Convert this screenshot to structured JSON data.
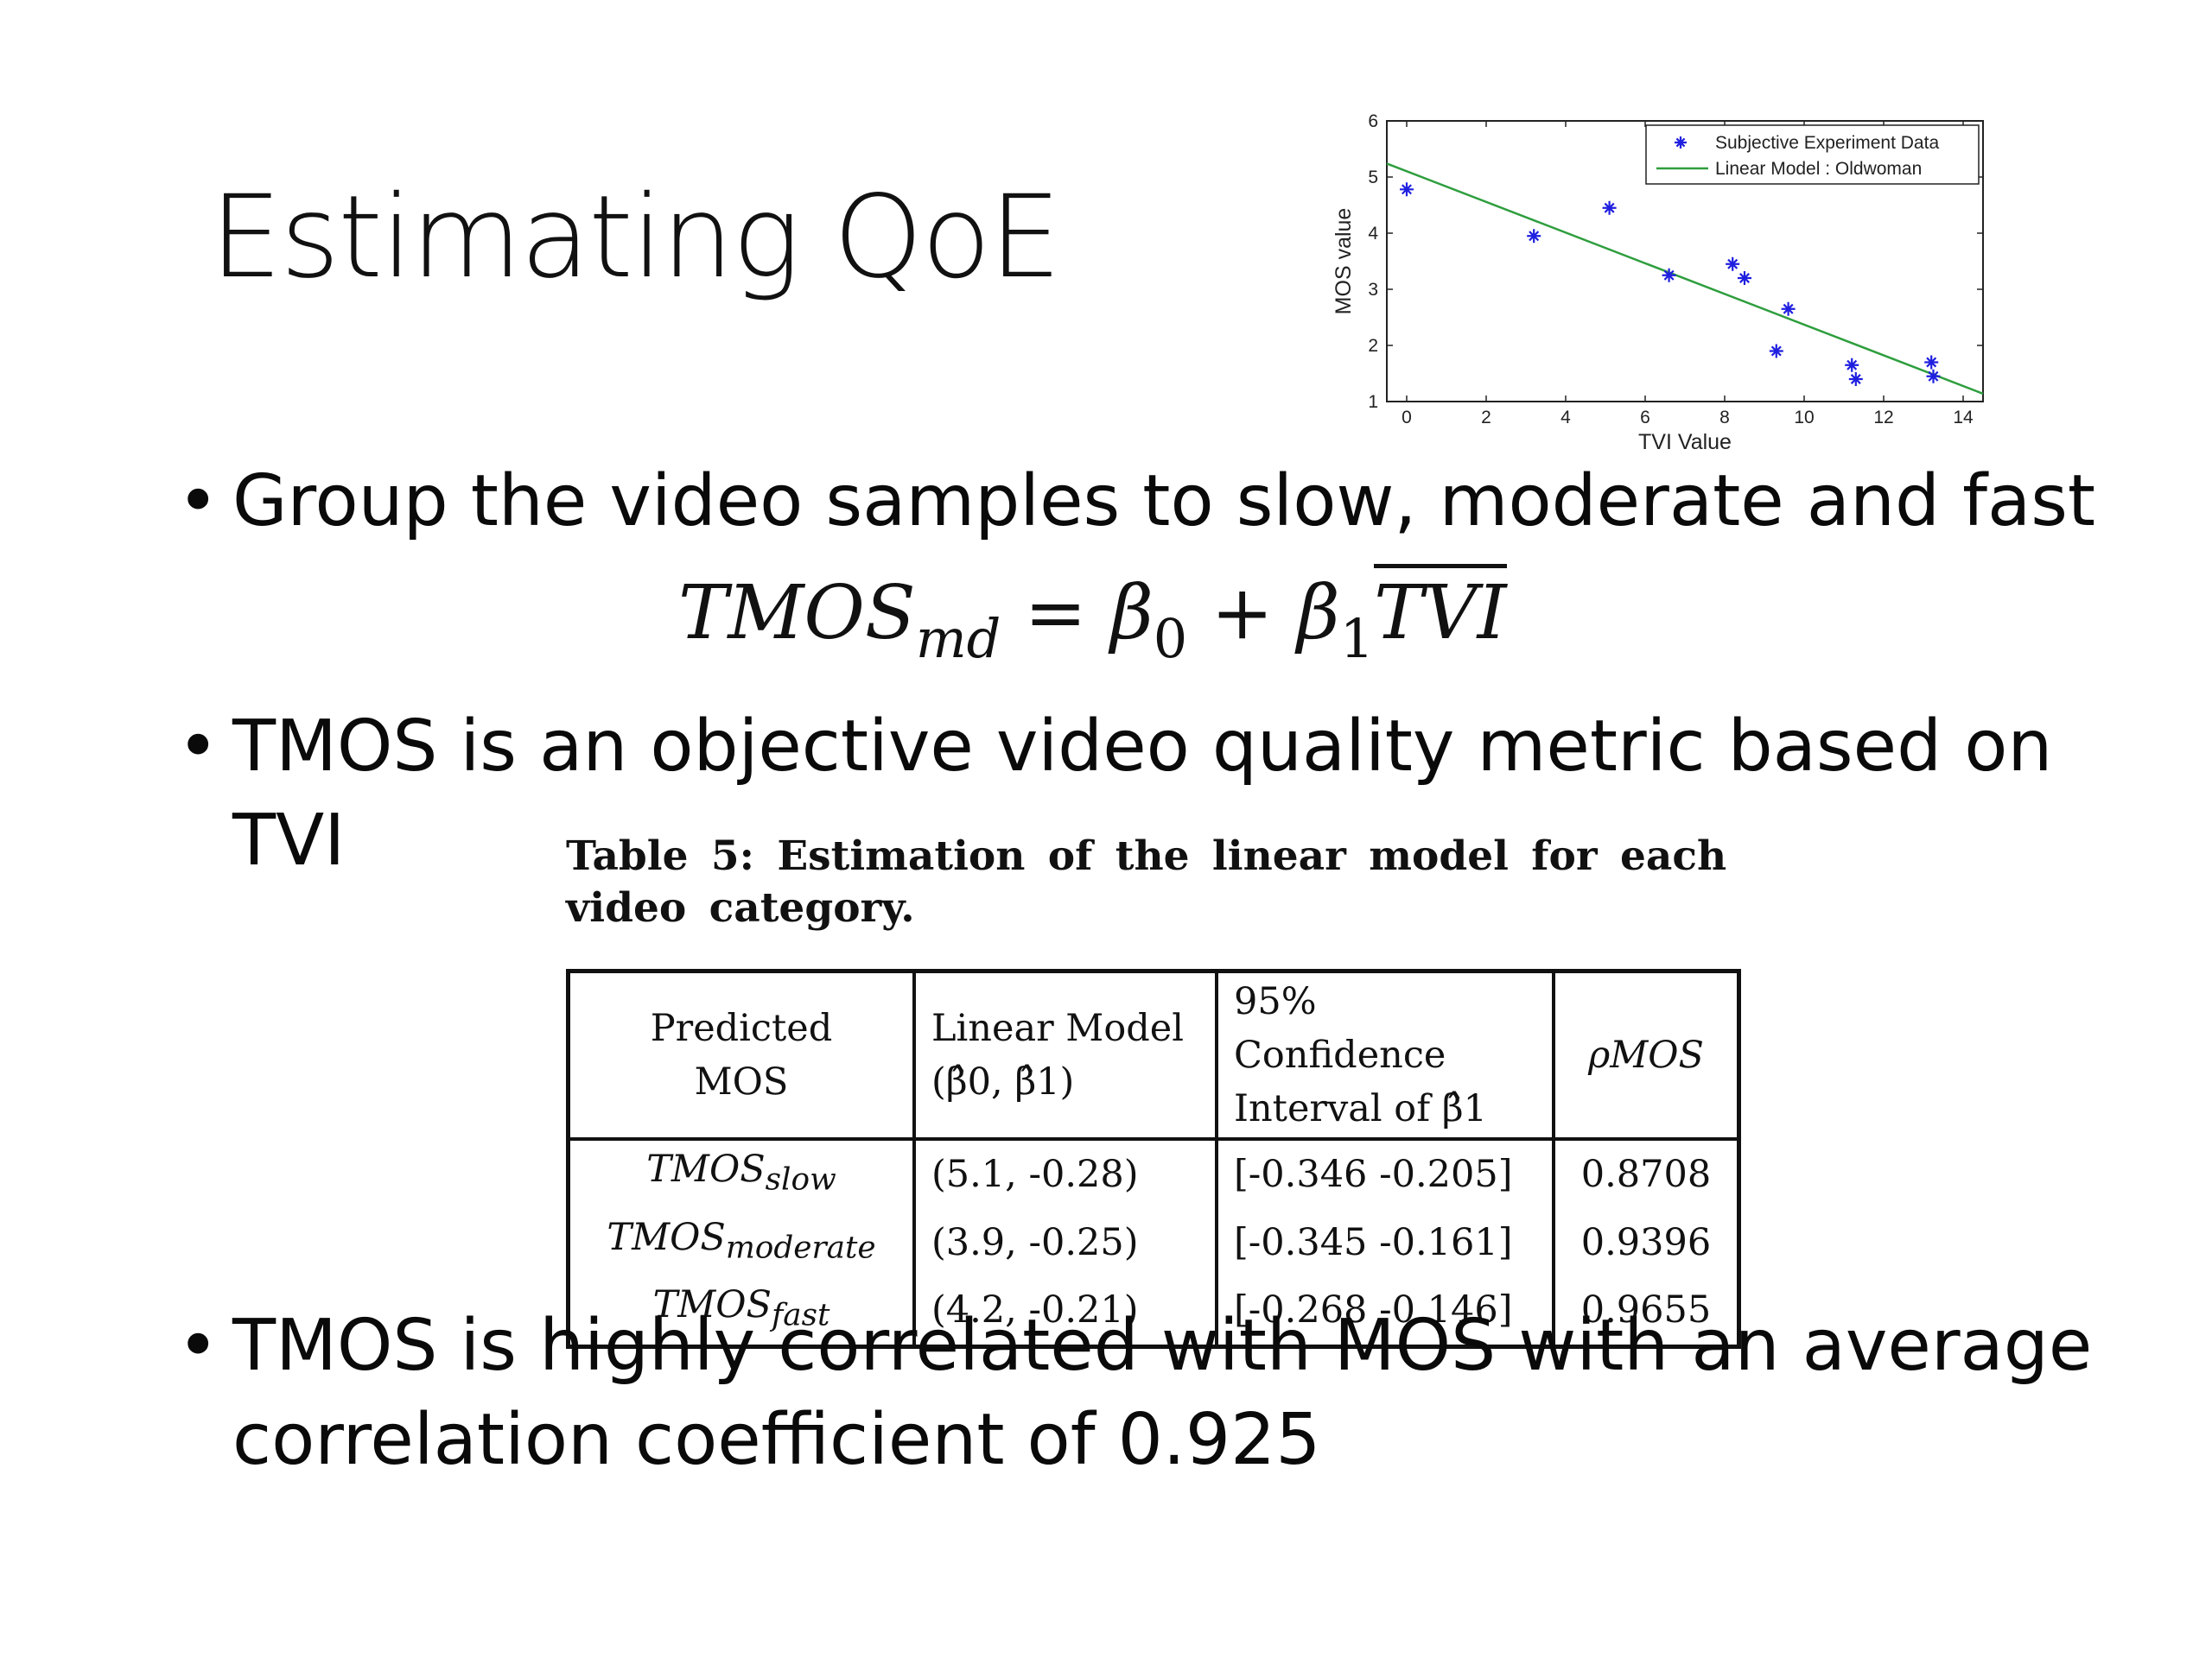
{
  "slide": {
    "title": "Estimating QoE",
    "bullets": [
      "Group the video samples to slow, moderate and fast",
      "TMOS is an objective video quality metric based on",
      "TVI",
      "TMOS is highly correlated with MOS with an average",
      "correlation coefficient of 0.925"
    ],
    "bullet_glyph": "•"
  },
  "formula": {
    "lhs": "TMOS",
    "lhs_sub": "md",
    "eq": "=",
    "b0": "β",
    "b0_sub": "0",
    "plus": "+",
    "b1": "β",
    "b1_sub": "1",
    "tvi": "TVI"
  },
  "table": {
    "caption_line1": "Table 5: Estimation of the linear model for each",
    "caption_line2": "video category.",
    "headers": {
      "c1_line1": "Predicted",
      "c1_line2": "MOS",
      "c2_line1": "Linear Model",
      "c2_line2": "(β̂0, β̂1)",
      "c3_line1": "95% Confidence",
      "c3_line2": "Interval of β̂1",
      "c4": "ρMOS"
    },
    "rows": [
      {
        "model": "TMOS",
        "sub": "slow",
        "params": "(5.1, -0.28)",
        "ci": "[-0.346 -0.205]",
        "rho": "0.8708"
      },
      {
        "model": "TMOS",
        "sub": "moderate",
        "params": "(3.9, -0.25)",
        "ci": "[-0.345 -0.161]",
        "rho": "0.9396"
      },
      {
        "model": "TMOS",
        "sub": "fast",
        "params": "(4.2, -0.21)",
        "ci": "[-0.268 -0.146]",
        "rho": "0.9655"
      }
    ]
  },
  "chart_data": {
    "type": "scatter",
    "title": "",
    "xlabel": "TVI Value",
    "ylabel": "MOS value",
    "xlim": [
      -0.5,
      14.5
    ],
    "ylim": [
      1,
      6
    ],
    "xticks": [
      0,
      2,
      4,
      6,
      8,
      10,
      12,
      14
    ],
    "yticks": [
      1,
      2,
      3,
      4,
      5,
      6
    ],
    "legend_position": "top-right",
    "series": [
      {
        "name": "Subjective Experiment Data",
        "kind": "points",
        "marker": "star",
        "color": "#1f1fe0",
        "points": [
          [
            0,
            4.78
          ],
          [
            3.2,
            3.95
          ],
          [
            5.1,
            4.45
          ],
          [
            6.6,
            3.25
          ],
          [
            8.2,
            3.45
          ],
          [
            8.5,
            3.2
          ],
          [
            9.3,
            1.9
          ],
          [
            9.6,
            2.65
          ],
          [
            11.2,
            1.65
          ],
          [
            11.3,
            1.4
          ],
          [
            13.2,
            1.7
          ],
          [
            13.25,
            1.45
          ]
        ]
      },
      {
        "name": "Linear Model : Oldwoman",
        "kind": "line",
        "color": "#2e9e3e",
        "points": [
          [
            -0.5,
            5.24
          ],
          [
            14.5,
            1.14
          ]
        ]
      }
    ]
  }
}
